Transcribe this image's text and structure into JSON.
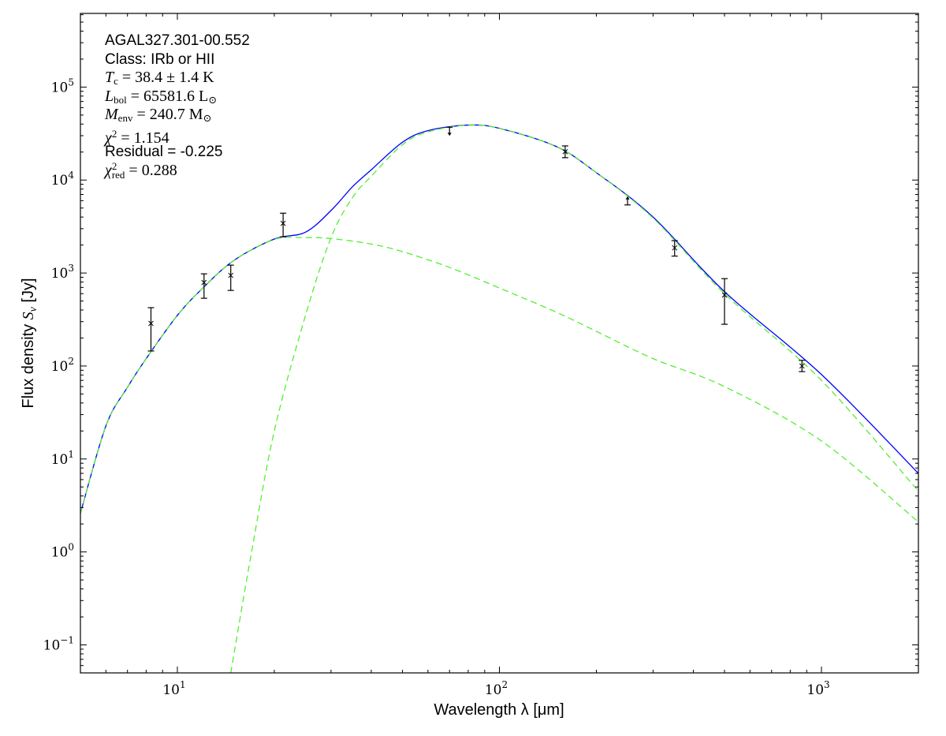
{
  "chart_data": {
    "type": "line",
    "xscale": "log",
    "yscale": "log",
    "xlim": [
      5,
      2000
    ],
    "ylim": [
      0.05,
      620000
    ],
    "xlabel": "Wavelength λ [μm]",
    "ylabel_prefix": "Flux density ",
    "ylabel_symbol": "S",
    "ylabel_sub": "ν",
    "ylabel_unit": " [Jy]",
    "grid": false,
    "x_ticks": [
      {
        "base": "10",
        "exp": "1",
        "value": 10
      },
      {
        "base": "10",
        "exp": "2",
        "value": 100
      },
      {
        "base": "10",
        "exp": "3",
        "value": 1000
      }
    ],
    "y_ticks": [
      {
        "base": "10",
        "exp": "−1",
        "value": 0.1
      },
      {
        "base": "10",
        "exp": "0",
        "value": 1
      },
      {
        "base": "10",
        "exp": "1",
        "value": 10
      },
      {
        "base": "10",
        "exp": "2",
        "value": 100
      },
      {
        "base": "10",
        "exp": "3",
        "value": 1000
      },
      {
        "base": "10",
        "exp": "4",
        "value": 10000
      },
      {
        "base": "10",
        "exp": "5",
        "value": 100000
      }
    ],
    "colors": {
      "total": "#0000ff",
      "components": "#55ee33",
      "points": "#000000"
    },
    "series": [
      {
        "style": "solid",
        "color": "#0000ff",
        "x": [
          5,
          6,
          7,
          8,
          10,
          12,
          15,
          20,
          25,
          30,
          35,
          40,
          50,
          60,
          80,
          100,
          150,
          200,
          300,
          500,
          1000,
          2000
        ],
        "y": [
          2.6,
          22.7,
          59,
          120,
          350,
          690,
          1370,
          2320,
          2750,
          4700,
          8500,
          12900,
          25500,
          34000,
          39000,
          36000,
          23000,
          12000,
          4000,
          630,
          81,
          7
        ]
      },
      {
        "style": "dashed",
        "color": "#55ee33",
        "x": [
          5,
          6,
          7,
          8,
          10,
          12,
          15,
          20,
          25,
          30,
          40,
          50,
          70,
          100,
          150,
          200,
          300,
          500,
          1000,
          2000
        ],
        "y": [
          2.6,
          22.7,
          59,
          120,
          350,
          690,
          1370,
          2300,
          2400,
          2350,
          2050,
          1700,
          1150,
          690,
          380,
          236,
          120,
          60,
          15.6,
          2.1
        ]
      },
      {
        "style": "dashed",
        "color": "#55ee33",
        "x": [
          14.65,
          17,
          20,
          25,
          30,
          35,
          40,
          50,
          60,
          80,
          100,
          150,
          200,
          300,
          500,
          1000,
          2000
        ],
        "y": [
          0.05,
          1,
          20,
          350,
          2400,
          6500,
          11000,
          24000,
          33000,
          39000,
          36000,
          23000,
          12000,
          3900,
          600,
          70,
          4.5
        ]
      }
    ],
    "points": [
      {
        "x": 8.28,
        "y": 287,
        "ylo": 145,
        "yhi": 424
      },
      {
        "x": 12.1,
        "y": 790,
        "ylo": 535,
        "yhi": 980
      },
      {
        "x": 14.65,
        "y": 944,
        "ylo": 650,
        "yhi": 1216
      },
      {
        "x": 21.3,
        "y": 3420,
        "ylo": 2450,
        "yhi": 4400
      },
      {
        "x": 70,
        "y": 37000,
        "limit": "upper"
      },
      {
        "x": 160,
        "y": 20200,
        "ylo": 17400,
        "yhi": 23300
      },
      {
        "x": 250,
        "y": 5400,
        "limit": "lower"
      },
      {
        "x": 350,
        "y": 1866,
        "ylo": 1520,
        "yhi": 2230
      },
      {
        "x": 500,
        "y": 580,
        "ylo": 281,
        "yhi": 870
      },
      {
        "x": 870,
        "y": 100,
        "ylo": 87,
        "yhi": 115
      }
    ]
  },
  "annotations": {
    "source": "AGAL327.301-00.552",
    "class": "Class: IRb or HII",
    "tc": {
      "sym": "T",
      "sub": "c",
      "rest": " = 38.4 ± 1.4 K"
    },
    "lbol": {
      "sym": "L",
      "sub": "bol",
      "rest": " = 65581.6 L",
      "rest_sub": "⊙"
    },
    "menv": {
      "sym": "M",
      "sub": "env",
      "rest": " = 240.7 M",
      "rest_sub": "⊙"
    },
    "chi2": {
      "sym": "χ",
      "sup": "2",
      "rest": " = 1.154"
    },
    "residual": "Residual = -0.225",
    "chi2red": {
      "sym": "χ",
      "sup": "2",
      "sub": "red",
      "rest": " = 0.288"
    }
  }
}
